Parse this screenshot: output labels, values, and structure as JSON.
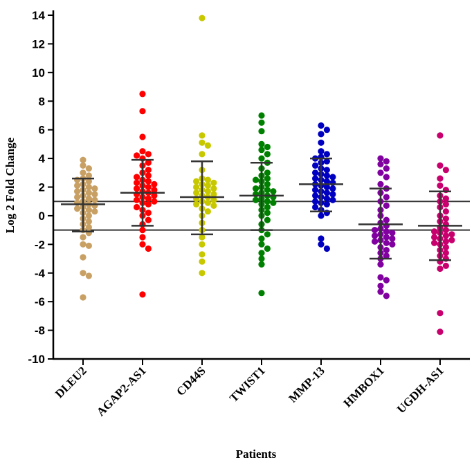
{
  "chart_data": {
    "type": "scatter",
    "subtype": "dot-plot with mean and SD error bars",
    "title": "",
    "xlabel": "Patients",
    "ylabel": "Log 2 Fold Change",
    "ylim": [
      -10,
      14
    ],
    "yticks": [
      -10,
      -8,
      -6,
      -4,
      -2,
      0,
      2,
      4,
      6,
      8,
      10,
      12,
      14
    ],
    "reference_lines": [
      1,
      -1
    ],
    "categories": [
      "DLEU2",
      "AGAP2-AS1",
      "CD44S",
      "TWIST1",
      "MMP-13",
      "HMBOX1",
      "UGDH-AS1"
    ],
    "series": [
      {
        "name": "DLEU2",
        "color": "#c8a064",
        "mean": 0.8,
        "sd_low": -1.1,
        "sd_high": 2.6,
        "values": [
          3.9,
          3.5,
          3.3,
          3.0,
          2.8,
          2.6,
          2.5,
          2.4,
          2.2,
          2.1,
          2.0,
          1.9,
          1.8,
          1.7,
          1.6,
          1.5,
          1.4,
          1.3,
          1.2,
          1.1,
          1.0,
          0.9,
          0.8,
          0.7,
          0.6,
          0.5,
          0.4,
          0.3,
          0.2,
          0.0,
          -0.2,
          -0.4,
          -0.6,
          -0.8,
          -1.0,
          -1.2,
          -1.5,
          -2.0,
          -2.1,
          -2.9,
          -4.0,
          -4.2,
          -5.7
        ]
      },
      {
        "name": "AGAP2-AS1",
        "color": "#ff0000",
        "mean": 1.6,
        "sd_low": -0.7,
        "sd_high": 3.9,
        "values": [
          8.5,
          7.3,
          5.5,
          4.5,
          4.3,
          4.2,
          4.0,
          3.7,
          3.5,
          3.2,
          3.0,
          2.8,
          2.7,
          2.5,
          2.4,
          2.3,
          2.2,
          2.1,
          2.0,
          1.9,
          1.8,
          1.7,
          1.6,
          1.5,
          1.4,
          1.3,
          1.2,
          1.1,
          1.0,
          0.9,
          0.8,
          0.6,
          0.4,
          0.2,
          0.0,
          -0.3,
          -0.6,
          -1.0,
          -1.5,
          -2.0,
          -2.3,
          -5.5
        ]
      },
      {
        "name": "CD44S",
        "color": "#c8c800",
        "mean": 1.3,
        "sd_low": -1.3,
        "sd_high": 3.8,
        "values": [
          13.8,
          5.6,
          5.1,
          4.9,
          4.3,
          3.2,
          2.6,
          2.5,
          2.4,
          2.3,
          2.2,
          2.1,
          2.0,
          1.9,
          1.8,
          1.7,
          1.6,
          1.5,
          1.4,
          1.3,
          1.2,
          1.1,
          1.0,
          0.9,
          0.8,
          0.7,
          0.5,
          0.3,
          0.0,
          -0.5,
          -1.0,
          -1.5,
          -2.0,
          -2.7,
          -3.2,
          -4.0
        ]
      },
      {
        "name": "TWIST1",
        "color": "#008000",
        "mean": 1.4,
        "sd_low": -1.0,
        "sd_high": 3.7,
        "values": [
          7.0,
          6.5,
          5.9,
          5.0,
          4.8,
          4.6,
          4.3,
          4.0,
          3.7,
          3.3,
          3.0,
          2.8,
          2.6,
          2.5,
          2.4,
          2.2,
          2.0,
          1.9,
          1.8,
          1.7,
          1.6,
          1.5,
          1.4,
          1.3,
          1.2,
          1.1,
          1.0,
          0.9,
          0.8,
          0.6,
          0.4,
          0.2,
          0.0,
          -0.3,
          -0.6,
          -1.0,
          -1.3,
          -1.6,
          -2.0,
          -2.3,
          -2.6,
          -3.0,
          -3.4,
          -5.4
        ]
      },
      {
        "name": "MMP-13",
        "color": "#0000c0",
        "mean": 2.2,
        "sd_low": 0.3,
        "sd_high": 4.0,
        "values": [
          6.3,
          6.0,
          5.7,
          5.1,
          4.5,
          4.3,
          4.1,
          4.0,
          3.8,
          3.7,
          3.5,
          3.3,
          3.2,
          3.0,
          2.9,
          2.8,
          2.7,
          2.6,
          2.5,
          2.4,
          2.3,
          2.2,
          2.1,
          2.0,
          1.9,
          1.8,
          1.7,
          1.6,
          1.5,
          1.4,
          1.3,
          1.2,
          1.1,
          1.0,
          0.9,
          0.8,
          0.6,
          0.4,
          0.2,
          0.0,
          -1.6,
          -2.0,
          -2.3
        ]
      },
      {
        "name": "HMBOX1",
        "color": "#8000a0",
        "mean": -0.6,
        "sd_low": -3.0,
        "sd_high": 1.9,
        "values": [
          4.0,
          3.8,
          3.6,
          3.3,
          3.0,
          2.7,
          2.2,
          1.9,
          1.6,
          1.3,
          1.0,
          0.7,
          0.4,
          0.0,
          -0.3,
          -0.5,
          -0.7,
          -0.9,
          -1.0,
          -1.1,
          -1.2,
          -1.3,
          -1.4,
          -1.5,
          -1.6,
          -1.7,
          -1.8,
          -1.9,
          -2.0,
          -2.2,
          -2.4,
          -2.6,
          -2.8,
          -3.0,
          -3.4,
          -4.3,
          -4.5,
          -4.9,
          -5.3,
          -5.6
        ]
      },
      {
        "name": "UGDH-AS1",
        "color": "#c8006e",
        "mean": -0.7,
        "sd_low": -3.1,
        "sd_high": 1.7,
        "values": [
          5.6,
          3.5,
          3.2,
          2.6,
          2.1,
          1.8,
          1.4,
          1.2,
          1.0,
          0.8,
          0.6,
          0.3,
          0.0,
          -0.2,
          -0.4,
          -0.6,
          -0.8,
          -1.0,
          -1.1,
          -1.2,
          -1.3,
          -1.4,
          -1.5,
          -1.6,
          -1.7,
          -1.8,
          -1.9,
          -2.0,
          -2.2,
          -2.4,
          -2.6,
          -2.8,
          -3.0,
          -3.2,
          -3.5,
          -3.7,
          -6.8,
          -8.1
        ]
      }
    ]
  }
}
